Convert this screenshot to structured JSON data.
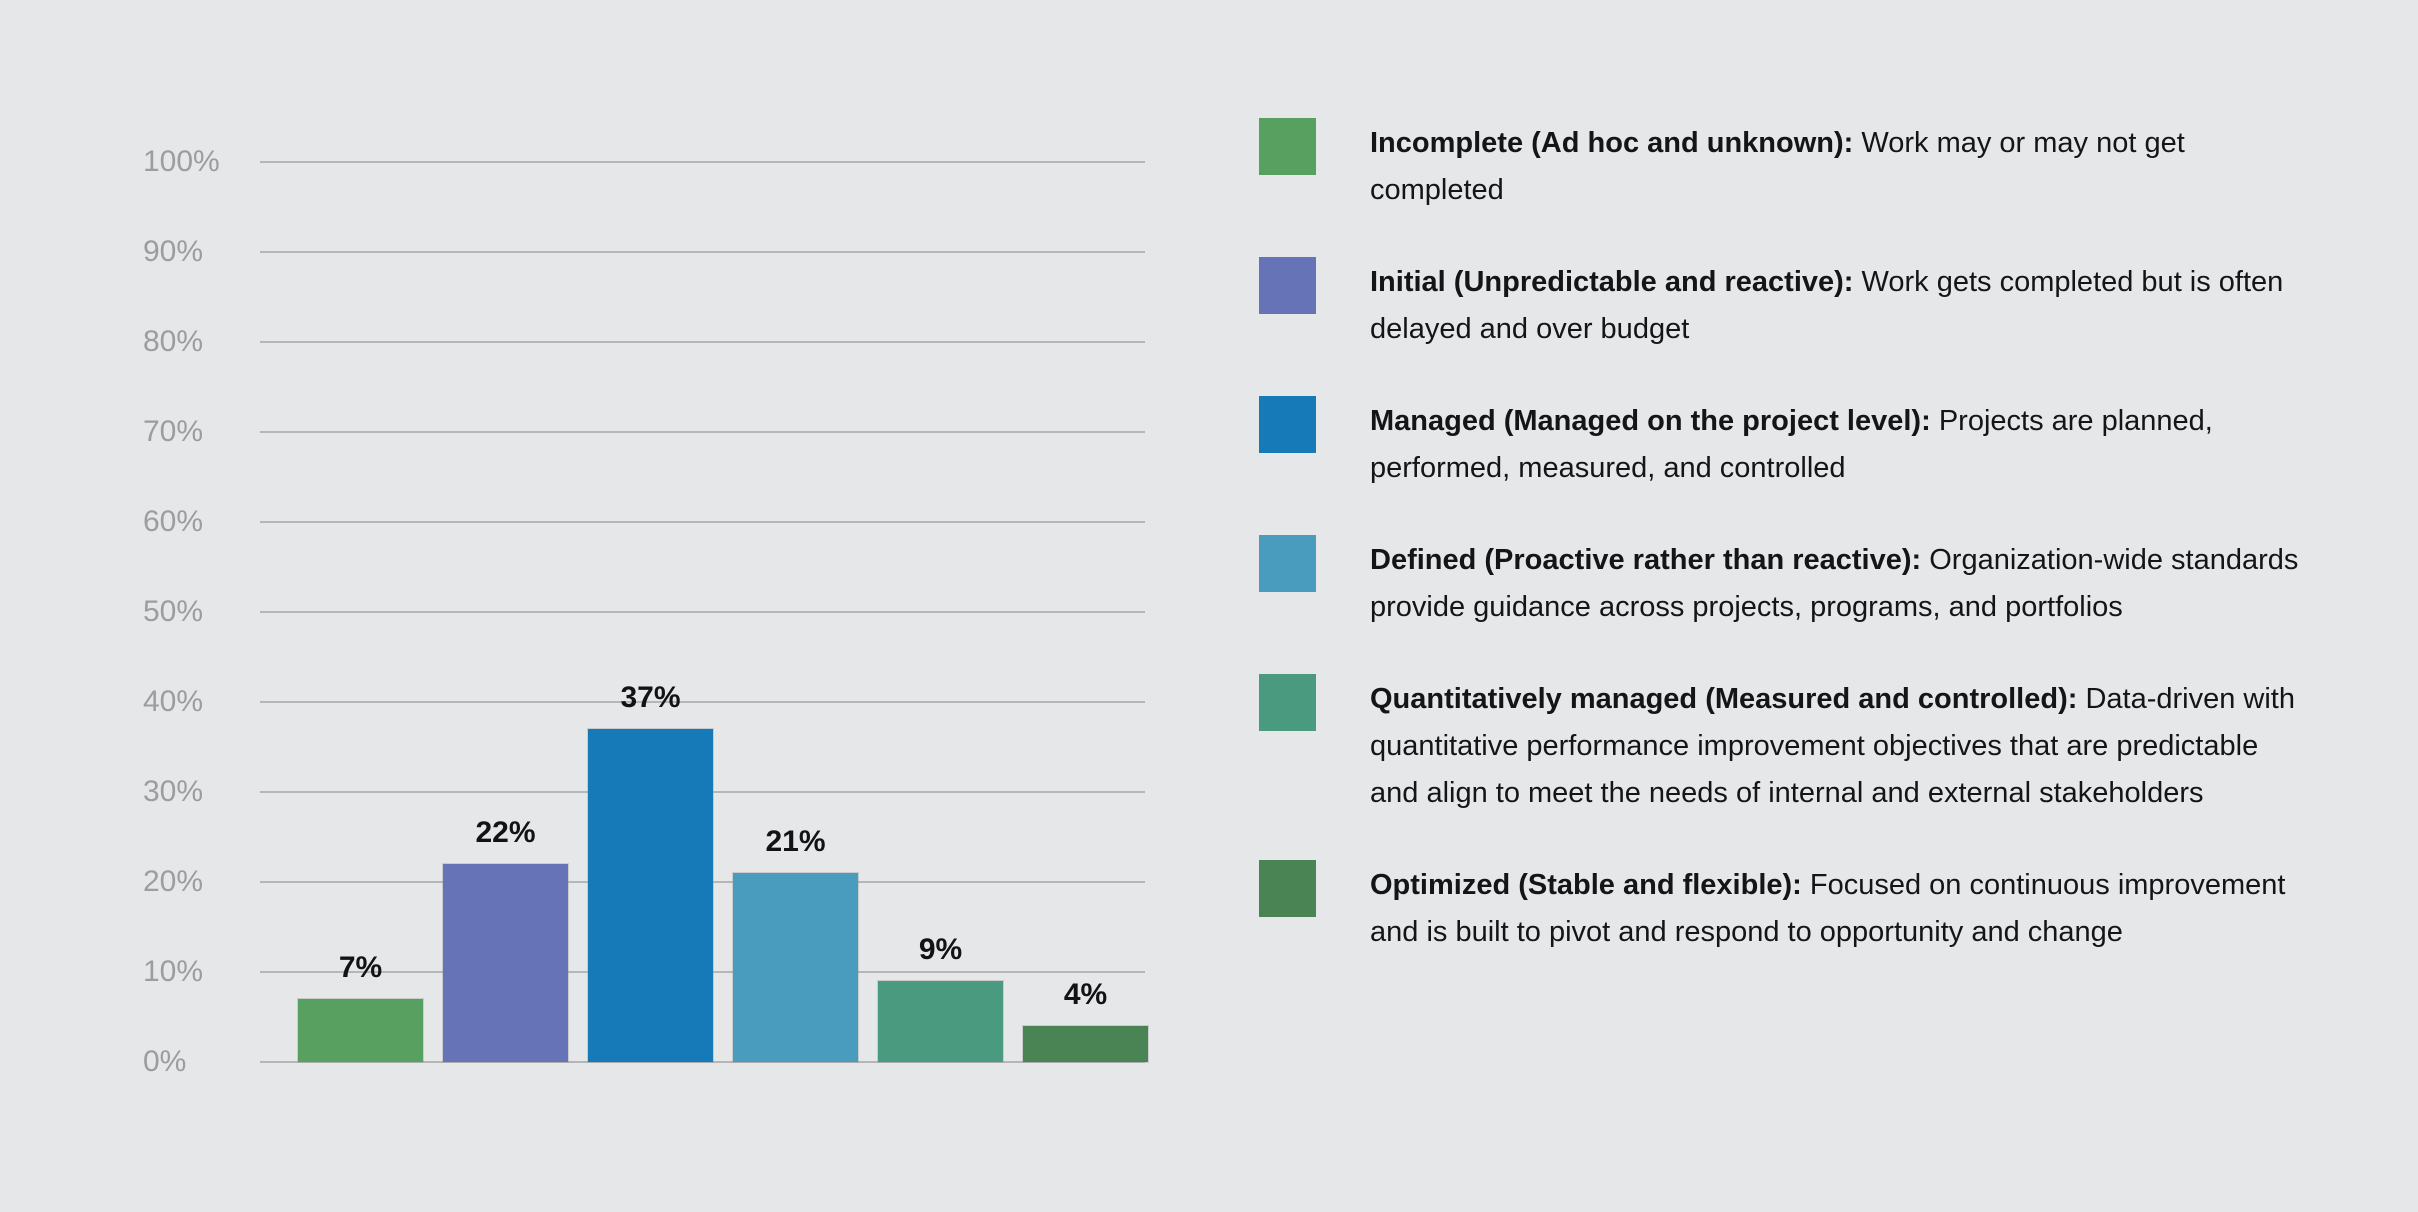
{
  "colors": {
    "background": "#e6e7e9",
    "gridline": "#b4b6b8",
    "axis_label": "#9b9da0",
    "data_label": "#121316",
    "legend_text": "#141517"
  },
  "chart_data": {
    "type": "bar",
    "title": "",
    "xlabel": "",
    "ylabel": "",
    "categories": [
      "Incomplete (Ad hoc and unknown)",
      "Initial (Unpredictable and reactive)",
      "Managed (Managed on the project level)",
      "Defined (Proactive rather than reactive)",
      "Quantitatively managed (Measured and controlled)",
      "Optimized (Stable and flexible)"
    ],
    "values": [
      7,
      22,
      37,
      21,
      9,
      4
    ],
    "bar_labels": [
      "7%",
      "22%",
      "37%",
      "21%",
      "9%",
      "4%"
    ],
    "bar_colors": [
      "#57a05f",
      "#6673b6",
      "#177ab8",
      "#4a9cbe",
      "#4a9a80",
      "#4a8455"
    ],
    "y_axis": {
      "min": 0,
      "max": 100,
      "step": 10,
      "tick_labels": [
        "0%",
        "10%",
        "20%",
        "30%",
        "40%",
        "50%",
        "60%",
        "70%",
        "80%",
        "90%",
        "100%"
      ]
    },
    "grid": true,
    "legend_position": "right"
  },
  "legend": {
    "items": [
      {
        "slug": "incomplete",
        "term": "Incomplete (Ad hoc and unknown):",
        "description": "Work may or may not get completed",
        "color": "#57a05f"
      },
      {
        "slug": "initial",
        "term": "Initial (Unpredictable and reactive):",
        "description": "Work gets completed but is often delayed and over budget",
        "color": "#6673b6"
      },
      {
        "slug": "managed",
        "term": "Managed (Managed on the project level):",
        "description": "Projects are planned, performed, measured, and controlled",
        "color": "#177ab8"
      },
      {
        "slug": "defined",
        "term": "Defined (Proactive rather than reactive):",
        "description": "Organization-wide standards provide guidance across projects, programs, and portfolios",
        "color": "#4a9cbe"
      },
      {
        "slug": "quantitatively-managed",
        "term": "Quantitatively managed (Measured and controlled):",
        "description": "Data-driven with quantitative performance improvement objectives that are predictable and align to meet the needs of internal and external stakeholders",
        "color": "#4a9a80"
      },
      {
        "slug": "optimized",
        "term": "Optimized (Stable and flexible):",
        "description": "Focused on continuous improvement and is built to pivot and respond to opportunity and change",
        "color": "#4a8455"
      }
    ]
  }
}
